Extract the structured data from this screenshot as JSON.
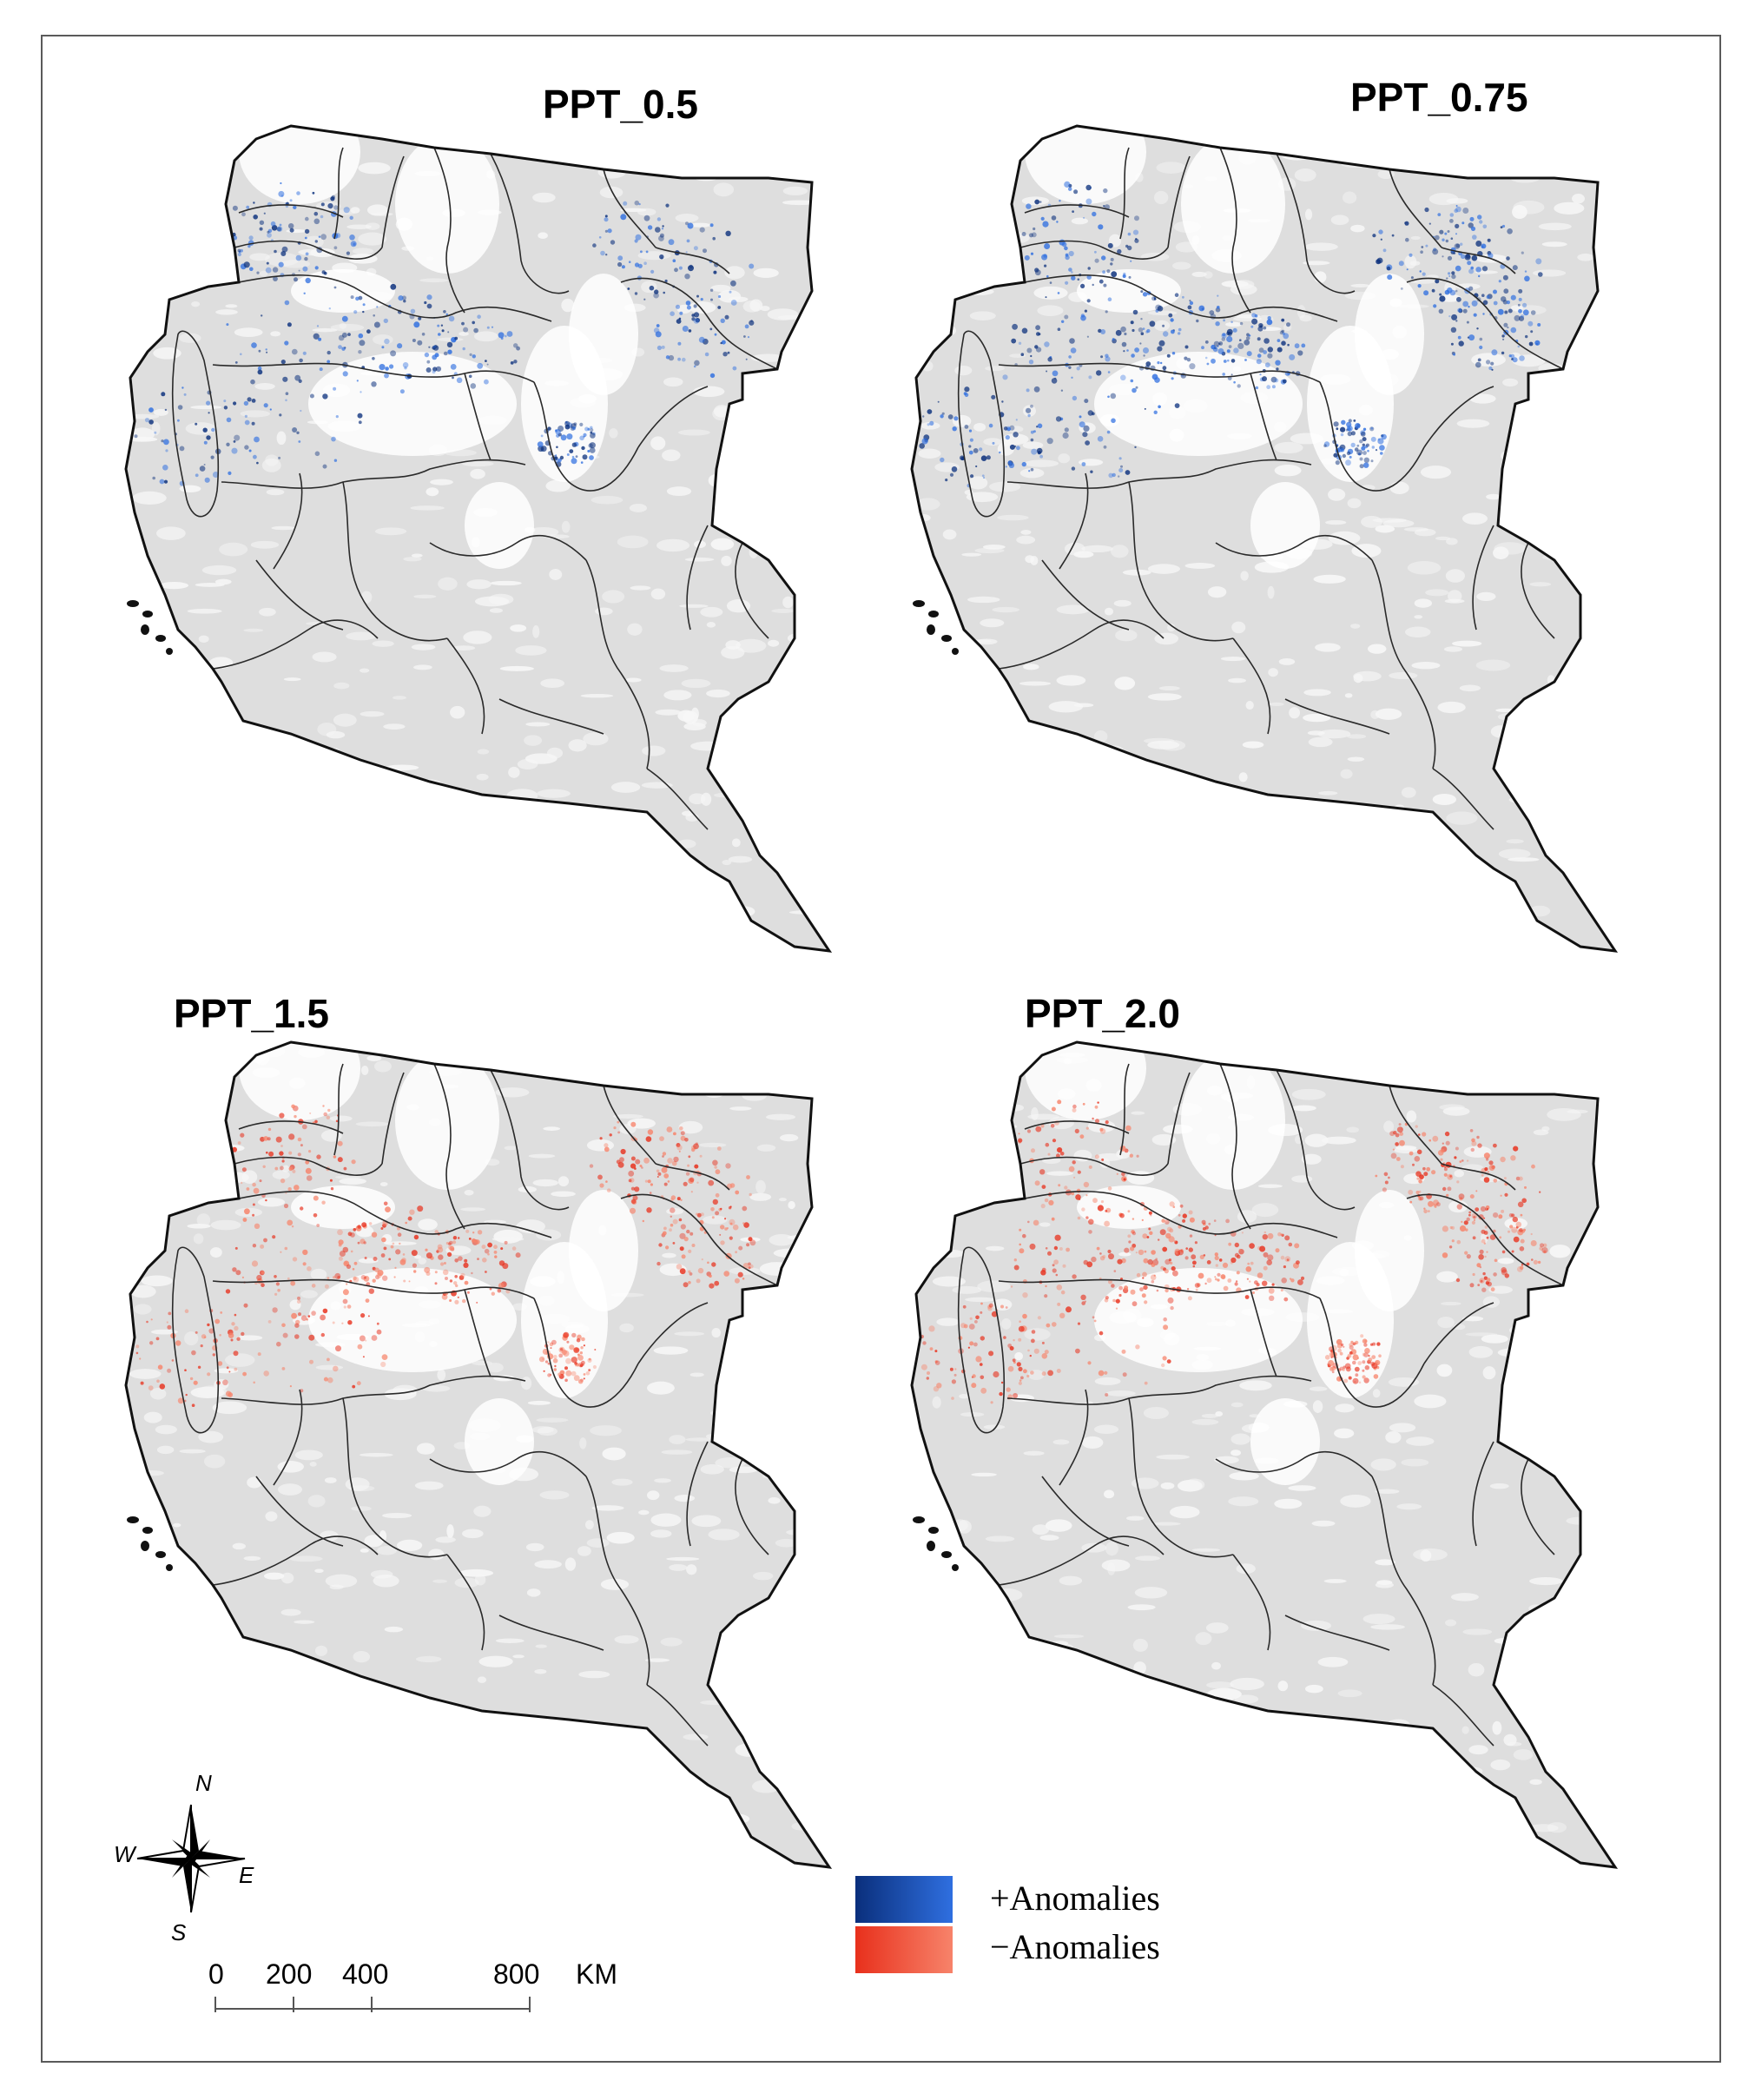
{
  "panels": [
    {
      "title": "PPT_0.5",
      "anomaly": "positive",
      "intensity": 0.55
    },
    {
      "title": "PPT_0.75",
      "anomaly": "positive",
      "intensity": 0.75
    },
    {
      "title": "PPT_1.5",
      "anomaly": "negative",
      "intensity": 0.7
    },
    {
      "title": "PPT_2.0",
      "anomaly": "negative",
      "intensity": 0.8
    }
  ],
  "legend": {
    "positive_label": "+Anomalies",
    "negative_label": "−Anomalies",
    "positive_colors": [
      "#0a2f7c",
      "#2f6fe0"
    ],
    "negative_colors": [
      "#e8301c",
      "#f7836a"
    ]
  },
  "compass": {
    "n": "N",
    "s": "S",
    "e": "E",
    "w": "W"
  },
  "scale": {
    "ticks": [
      "0",
      "200",
      "400",
      "800"
    ],
    "unit": "KM"
  },
  "colors": {
    "land": "#dedede",
    "land_light": "#f6f6f6",
    "boundary": "#2a2a2a",
    "frame": "#5a5a5a"
  }
}
